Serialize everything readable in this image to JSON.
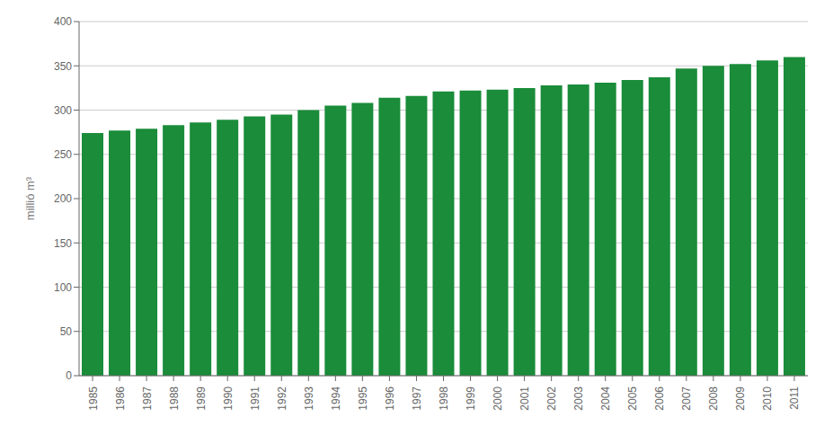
{
  "chart_data": {
    "type": "bar",
    "ylabel": "millió m³",
    "categories": [
      "1985",
      "1986",
      "1987",
      "1988",
      "1989",
      "1990",
      "1991",
      "1992",
      "1993",
      "1994",
      "1995",
      "1996",
      "1997",
      "1998",
      "1999",
      "2000",
      "2001",
      "2002",
      "2003",
      "2004",
      "2005",
      "2006",
      "2007",
      "2008",
      "2009",
      "2010",
      "2011"
    ],
    "values": [
      274,
      277,
      279,
      283,
      286,
      289,
      293,
      295,
      300,
      305,
      308,
      314,
      316,
      321,
      322,
      323,
      325,
      328,
      329,
      331,
      334,
      337,
      347,
      350,
      352,
      356,
      360
    ],
    "color": "#1a8c3a",
    "ylim": [
      0,
      400
    ],
    "yticks": [
      0,
      50,
      100,
      150,
      200,
      250,
      300,
      350,
      400
    ],
    "grid": true
  }
}
